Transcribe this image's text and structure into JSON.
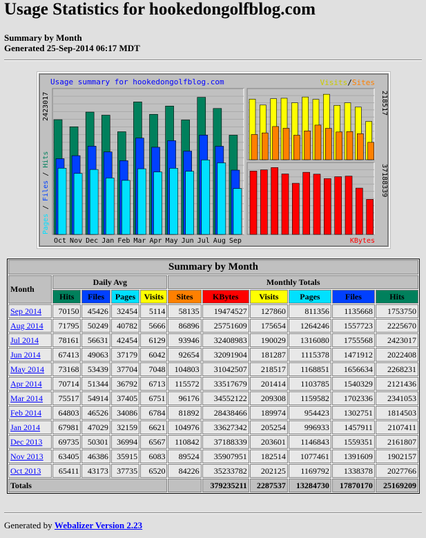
{
  "page_title": "Usage Statistics for hookedongolfblog.com",
  "subtitle": {
    "line1": "Summary by Month",
    "line2": "Generated 25-Sep-2014 06:17 MDT"
  },
  "colors": {
    "hits": "#00805c",
    "files": "#0040ff",
    "pages": "#00e0ff",
    "visits": "#ffff00",
    "sites": "#ff8000",
    "kbytes": "#ff0000"
  },
  "chart_data": {
    "type": "bar",
    "title": "Usage summary for hookedongolfblog.com",
    "categories": [
      "Oct",
      "Nov",
      "Dec",
      "Jan",
      "Feb",
      "Mar",
      "Apr",
      "May",
      "Jun",
      "Jul",
      "Aug",
      "Sep"
    ],
    "panels": [
      {
        "legend": "Pages / Files / Hits",
        "max_label": "2423017",
        "series": [
          {
            "name": "Hits",
            "values": [
              2027766,
              1902157,
              2161807,
              2107411,
              1814503,
              2341053,
              2121436,
              2268231,
              2022408,
              2423017,
              2225670,
              1753750
            ]
          },
          {
            "name": "Files",
            "values": [
              1338378,
              1391609,
              1559351,
              1457911,
              1302751,
              1702336,
              1540329,
              1656634,
              1471912,
              1755568,
              1557723,
              1135668
            ]
          },
          {
            "name": "Pages",
            "values": [
              1169792,
              1077461,
              1146843,
              996933,
              954423,
              1159582,
              1103785,
              1168851,
              1115378,
              1316080,
              1264246,
              811356
            ]
          }
        ]
      },
      {
        "legend": "Visits / Sites",
        "max_label": "218517",
        "series": [
          {
            "name": "Visits",
            "values": [
              202125,
              182514,
              203601,
              205254,
              189974,
              209308,
              201414,
              218517,
              181287,
              190029,
              175654,
              127860
            ]
          },
          {
            "name": "Sites",
            "values": [
              84226,
              89524,
              110842,
              104976,
              81892,
              96176,
              115572,
              104803,
              92654,
              93946,
              86896,
              58135
            ]
          }
        ]
      },
      {
        "legend": "KBytes",
        "max_label": "37188339",
        "series": [
          {
            "name": "KBytes",
            "values": [
              35233782,
              35907951,
              37188339,
              33627342,
              28438466,
              34552122,
              33517679,
              31042507,
              32091904,
              32408983,
              25751609,
              19474527
            ]
          }
        ]
      }
    ]
  },
  "table": {
    "caption": "Summary by Month",
    "month_header": "Month",
    "daily_avg_header": "Daily Avg",
    "monthly_totals_header": "Monthly Totals",
    "daily_cols": [
      "Hits",
      "Files",
      "Pages",
      "Visits"
    ],
    "monthly_cols": [
      "Sites",
      "KBytes",
      "Visits",
      "Pages",
      "Files",
      "Hits"
    ],
    "rows": [
      {
        "month": "Sep 2014",
        "cells": [
          "70150",
          "45426",
          "32454",
          "5114",
          "58135",
          "19474527",
          "127860",
          "811356",
          "1135668",
          "1753750"
        ]
      },
      {
        "month": "Aug 2014",
        "cells": [
          "71795",
          "50249",
          "40782",
          "5666",
          "86896",
          "25751609",
          "175654",
          "1264246",
          "1557723",
          "2225670"
        ]
      },
      {
        "month": "Jul 2014",
        "cells": [
          "78161",
          "56631",
          "42454",
          "6129",
          "93946",
          "32408983",
          "190029",
          "1316080",
          "1755568",
          "2423017"
        ]
      },
      {
        "month": "Jun 2014",
        "cells": [
          "67413",
          "49063",
          "37179",
          "6042",
          "92654",
          "32091904",
          "181287",
          "1115378",
          "1471912",
          "2022408"
        ]
      },
      {
        "month": "May 2014",
        "cells": [
          "73168",
          "53439",
          "37704",
          "7048",
          "104803",
          "31042507",
          "218517",
          "1168851",
          "1656634",
          "2268231"
        ]
      },
      {
        "month": "Apr 2014",
        "cells": [
          "70714",
          "51344",
          "36792",
          "6713",
          "115572",
          "33517679",
          "201414",
          "1103785",
          "1540329",
          "2121436"
        ]
      },
      {
        "month": "Mar 2014",
        "cells": [
          "75517",
          "54914",
          "37405",
          "6751",
          "96176",
          "34552122",
          "209308",
          "1159582",
          "1702336",
          "2341053"
        ]
      },
      {
        "month": "Feb 2014",
        "cells": [
          "64803",
          "46526",
          "34086",
          "6784",
          "81892",
          "28438466",
          "189974",
          "954423",
          "1302751",
          "1814503"
        ]
      },
      {
        "month": "Jan 2014",
        "cells": [
          "67981",
          "47029",
          "32159",
          "6621",
          "104976",
          "33627342",
          "205254",
          "996933",
          "1457911",
          "2107411"
        ]
      },
      {
        "month": "Dec 2013",
        "cells": [
          "69735",
          "50301",
          "36994",
          "6567",
          "110842",
          "37188339",
          "203601",
          "1146843",
          "1559351",
          "2161807"
        ]
      },
      {
        "month": "Nov 2013",
        "cells": [
          "63405",
          "46386",
          "35915",
          "6083",
          "89524",
          "35907951",
          "182514",
          "1077461",
          "1391609",
          "1902157"
        ]
      },
      {
        "month": "Oct 2013",
        "cells": [
          "65411",
          "43173",
          "37735",
          "6520",
          "84226",
          "35233782",
          "202125",
          "1169792",
          "1338378",
          "2027766"
        ]
      }
    ],
    "totals_label": "Totals",
    "totals": [
      "379235211",
      "2287537",
      "13284730",
      "17870170",
      "25169209"
    ]
  },
  "footer": {
    "prefix": "Generated by ",
    "link_text": "Webalizer Version 2.23"
  }
}
